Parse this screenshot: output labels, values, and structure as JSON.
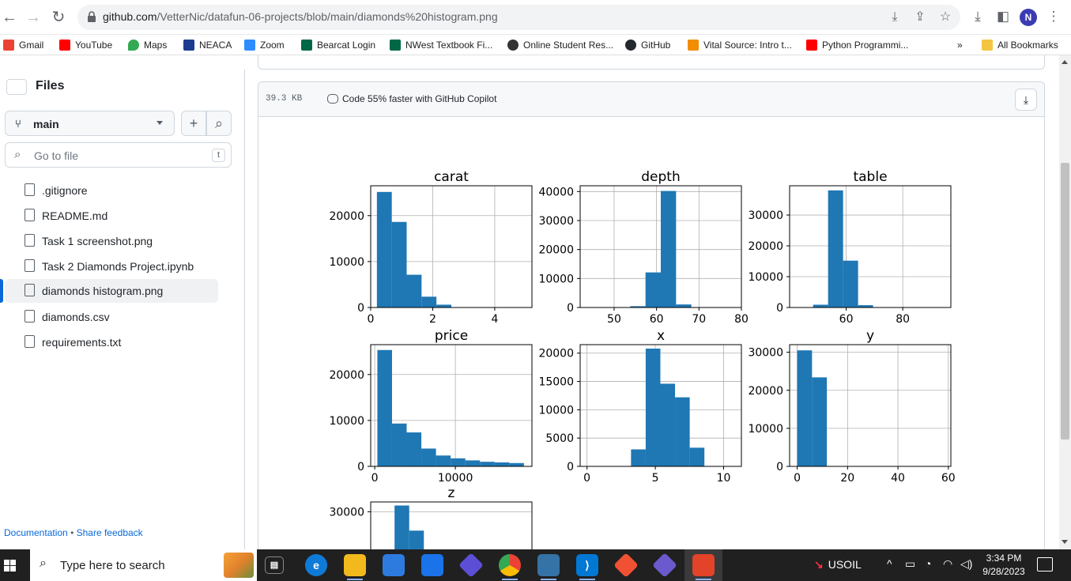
{
  "browser": {
    "url_host": "github.com",
    "url_path": "/VetterNic/datafun-06-projects/blob/main/diamonds%20histogram.png",
    "profile_initial": "N",
    "bookmarks": [
      {
        "label": "Gmail",
        "color": "#ea4335"
      },
      {
        "label": "YouTube",
        "color": "#ff0000"
      },
      {
        "label": "Maps",
        "color": "#34a853"
      },
      {
        "label": "NEACA",
        "color": "#1a3d8f"
      },
      {
        "label": "Zoom",
        "color": "#2d8cff"
      },
      {
        "label": "Bearcat Login",
        "color": "#006747"
      },
      {
        "label": "NWest Textbook Fi...",
        "color": "#006747"
      },
      {
        "label": "Online Student Res...",
        "color": "#333333"
      },
      {
        "label": "GitHub",
        "color": "#24292f"
      },
      {
        "label": "Vital Source: Intro t...",
        "color": "#f28c00"
      },
      {
        "label": "Python Programmi...",
        "color": "#ff0000"
      }
    ],
    "more_bookmarks": "»",
    "all_bookmarks": "All Bookmarks"
  },
  "sidebar": {
    "title": "Files",
    "branch": "main",
    "goto_placeholder": "Go to file",
    "goto_shortcut": "t",
    "files": [
      ".gitignore",
      "README.md",
      "Task 1 screenshot.png",
      "Task 2 Diamonds Project.ipynb",
      "diamonds histogram.png",
      "diamonds.csv",
      "requirements.txt"
    ],
    "active_file_index": 4,
    "footer_docs": "Documentation",
    "footer_sep": "•",
    "footer_feedback": "Share feedback"
  },
  "file_view": {
    "size": "39.3 KB",
    "copilot_text": "Code 55% faster with GitHub Copilot"
  },
  "chart_data": [
    {
      "type": "bar",
      "title": "carat",
      "xlim": [
        0,
        5.2
      ],
      "ylim": [
        0,
        26500
      ],
      "xticks": [
        0,
        2,
        4
      ],
      "yticks": [
        0,
        10000,
        20000
      ],
      "bin_edges": [
        0.2,
        0.68,
        1.16,
        1.64,
        2.12,
        2.6,
        3.08,
        3.56,
        4.04,
        4.52,
        5.0
      ],
      "counts": [
        25155,
        18626,
        7129,
        2349,
        614,
        53,
        6,
        5,
        2,
        1
      ],
      "grid": true
    },
    {
      "type": "bar",
      "title": "depth",
      "xlim": [
        42,
        80
      ],
      "ylim": [
        0,
        42000
      ],
      "xticks": [
        50,
        60,
        70,
        80
      ],
      "yticks": [
        0,
        10000,
        20000,
        30000,
        40000
      ],
      "bin_edges": [
        43.0,
        46.6,
        50.2,
        53.8,
        57.4,
        61.0,
        64.6,
        68.2,
        71.8,
        75.4,
        79.0
      ],
      "counts": [
        5,
        3,
        50,
        450,
        12100,
        40200,
        1050,
        60,
        20,
        2
      ],
      "grid": true
    },
    {
      "type": "bar",
      "title": "table",
      "xlim": [
        40,
        97
      ],
      "ylim": [
        0,
        39500
      ],
      "xticks": [
        60,
        80
      ],
      "yticks": [
        0,
        10000,
        20000,
        30000
      ],
      "bin_edges": [
        43.0,
        48.3,
        53.6,
        58.9,
        64.2,
        69.5,
        74.8,
        80.1,
        85.4,
        90.7,
        96.0
      ],
      "counts": [
        20,
        900,
        38000,
        15200,
        750,
        30,
        5,
        2,
        1,
        1
      ],
      "grid": true
    },
    {
      "type": "bar",
      "title": "price",
      "xlim": [
        -500,
        19500
      ],
      "ylim": [
        0,
        26500
      ],
      "xticks": [
        0,
        10000
      ],
      "yticks": [
        0,
        10000,
        20000
      ],
      "bin_edges": [
        326,
        2144,
        3962,
        5780,
        7598,
        9416,
        11234,
        13052,
        14870,
        16688,
        18506
      ],
      "counts": [
        25335,
        9328,
        7393,
        3878,
        2364,
        1745,
        1306,
        1002,
        863,
        726
      ],
      "grid": true
    },
    {
      "type": "bar",
      "title": "x",
      "xlim": [
        -0.5,
        11.3
      ],
      "ylim": [
        0,
        21500
      ],
      "xticks": [
        0,
        5,
        10
      ],
      "yticks": [
        0,
        5000,
        10000,
        15000,
        20000
      ],
      "bin_edges": [
        0,
        1.074,
        2.148,
        3.222,
        4.296,
        5.37,
        6.444,
        7.518,
        8.592,
        9.666,
        10.74
      ],
      "counts": [
        8,
        0,
        0,
        3000,
        20800,
        14600,
        12200,
        3300,
        60,
        8
      ],
      "grid": true
    },
    {
      "type": "bar",
      "title": "y",
      "xlim": [
        -3,
        61
      ],
      "ylim": [
        0,
        32000
      ],
      "xticks": [
        0,
        20,
        40,
        60
      ],
      "yticks": [
        0,
        10000,
        20000,
        30000
      ],
      "bin_edges": [
        0,
        5.89,
        11.78,
        17.67,
        23.56,
        29.45,
        35.34,
        41.23,
        47.12,
        53.01,
        58.9
      ],
      "counts": [
        30500,
        23400,
        0,
        0,
        0,
        0,
        0,
        0,
        1,
        1
      ],
      "grid": true
    },
    {
      "type": "bar",
      "title": "z",
      "xlim": [
        -2,
        33
      ],
      "ylim": [
        0,
        35500
      ],
      "xticks": [],
      "yticks": [
        30000
      ],
      "bin_edges": [
        0,
        3.18,
        6.36,
        9.54,
        12.72,
        15.9,
        19.08,
        22.26,
        25.44,
        28.62,
        31.8
      ],
      "counts": [
        1000,
        33500,
        19400,
        0,
        0,
        0,
        0,
        0,
        0,
        1
      ],
      "grid": true
    }
  ],
  "taskbar": {
    "search_placeholder": "Type here to search",
    "tray_label": "USOIL",
    "time": "3:34 PM",
    "date": "9/28/2023"
  },
  "colors": {
    "bar": "#1f77b4",
    "accent": "#0969da"
  }
}
